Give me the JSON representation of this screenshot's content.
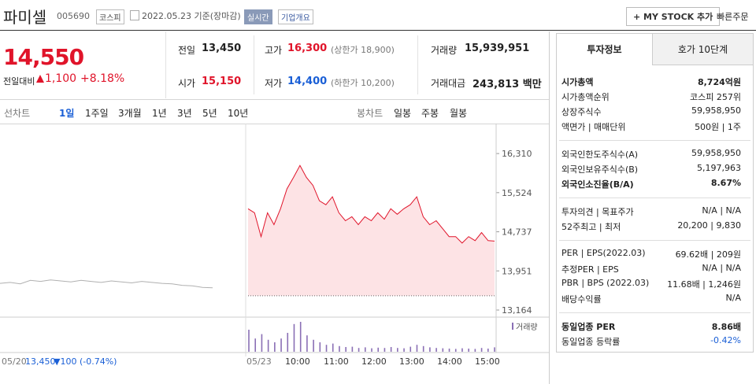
{
  "header": {
    "name": "파미셀",
    "code": "005690",
    "market": "코스피",
    "date": "2022.05.23 기준(장마감)",
    "realtime": "실시간",
    "company": "기업개요",
    "mystock": "+ MY STOCK 추가",
    "quick_order": "빠른주문"
  },
  "price": {
    "current": "14,550",
    "change_label": "전일대비",
    "change": "1,100",
    "rate": "+8.18%"
  },
  "summary": [
    {
      "label": "전일",
      "value": "13,450",
      "color": "#222222"
    },
    {
      "label": "고가",
      "value": "16,300",
      "note": "(상한가 18,900)",
      "color": "#e0142a"
    },
    {
      "label": "거래량",
      "value": "15,939,951",
      "color": "#222222"
    },
    {
      "label": "시가",
      "value": "15,150",
      "color": "#e0142a"
    },
    {
      "label": "저가",
      "value": "14,400",
      "note": "(하한가 10,200)",
      "color": "#1a5fd6"
    },
    {
      "label": "거래대금",
      "value": "243,813 백만",
      "color": "#222222"
    }
  ],
  "chart_tabs": {
    "line": "선차트",
    "periods": [
      "1일",
      "1주일",
      "3개월",
      "1년",
      "3년",
      "5년",
      "10년"
    ],
    "candle": "봉차트",
    "candles": [
      "일봉",
      "주봉",
      "월봉"
    ]
  },
  "chart_data": {
    "type": "line",
    "ylim": [
      13069,
      16866
    ],
    "yticks": [
      {
        "value": 16310,
        "label": "16,310"
      },
      {
        "value": 15524,
        "label": "15,524"
      },
      {
        "value": 14737,
        "label": "14,737"
      },
      {
        "value": 13951,
        "label": "13,951"
      },
      {
        "value": 13164,
        "label": "13,164"
      }
    ],
    "grid": false,
    "reference": 13450,
    "x_labels": [
      "05/20",
      "05/23",
      "10:00",
      "11:00",
      "12:00",
      "13:00",
      "14:00",
      "15:00"
    ],
    "series": [
      {
        "color": "#b0b0b0",
        "values": [
          13700,
          13720,
          13690,
          13760,
          13740,
          13770,
          13750,
          13730,
          13760,
          13740,
          13720,
          13750,
          13730,
          13710,
          13740,
          13720,
          13700,
          13690,
          13660,
          13650,
          13620,
          13610
        ]
      },
      {
        "color": "#e0142a",
        "fill": "#fde3e5",
        "values": [
          15200,
          15120,
          14640,
          15120,
          14880,
          15200,
          15600,
          15830,
          16070,
          15830,
          15670,
          15360,
          15280,
          15440,
          15120,
          14960,
          15040,
          14880,
          15040,
          14960,
          15120,
          14990,
          15200,
          15090,
          15200,
          15280,
          15440,
          15040,
          14880,
          14960,
          14800,
          14640,
          14640,
          14510,
          14640,
          14560,
          14720,
          14560,
          14550
        ]
      }
    ],
    "volume_label": "거래량",
    "volume": {
      "color": "#8a6fb5",
      "ylim": [
        0,
        1000
      ],
      "values": [
        700,
        420,
        560,
        380,
        300,
        420,
        600,
        880,
        950,
        520,
        380,
        300,
        220,
        260,
        180,
        150,
        160,
        120,
        140,
        110,
        130,
        120,
        150,
        120,
        110,
        160,
        220,
        180,
        140,
        120,
        110,
        100,
        90,
        110,
        100,
        90,
        120,
        100,
        140
      ]
    },
    "prev_close": "13,450",
    "prev_change": "▼100 (-0.74%)"
  },
  "info": {
    "tabs": [
      "투자정보",
      "호가 10단계"
    ],
    "sections": [
      [
        {
          "label": "시가총액",
          "value": "8,724억원",
          "bold": true
        },
        {
          "label": "시가총액순위",
          "value": "코스피 257위"
        },
        {
          "label": "상장주식수",
          "value": "59,958,950"
        },
        {
          "label": "액면가 | 매매단위",
          "value": "500원 | 1주"
        }
      ],
      [
        {
          "label": "외국인한도주식수(A)",
          "value": "59,958,950"
        },
        {
          "label": "외국인보유주식수(B)",
          "value": "5,197,963"
        },
        {
          "label": "외국인소진율(B/A)",
          "value": "8.67%",
          "bold": true
        }
      ],
      [
        {
          "label": "투자의견 | 목표주가",
          "value": "N/A | N/A"
        },
        {
          "label": "52주최고 | 최저",
          "value": "20,200 | 9,830"
        }
      ],
      [
        {
          "label": "PER | EPS(2022.03)",
          "value": "69.62배 | 209원"
        },
        {
          "label": "추정PER | EPS",
          "value": "N/A | N/A"
        },
        {
          "label": "PBR | BPS (2022.03)",
          "value": "11.68배 | 1,246원"
        },
        {
          "label": "배당수익률",
          "value": "N/A"
        }
      ],
      [
        {
          "label": "동일업종 PER",
          "value": "8.86배",
          "bold": true
        },
        {
          "label": "동일업종 등락률",
          "value": "-0.42%",
          "color": "#1a5fd6"
        }
      ]
    ]
  }
}
